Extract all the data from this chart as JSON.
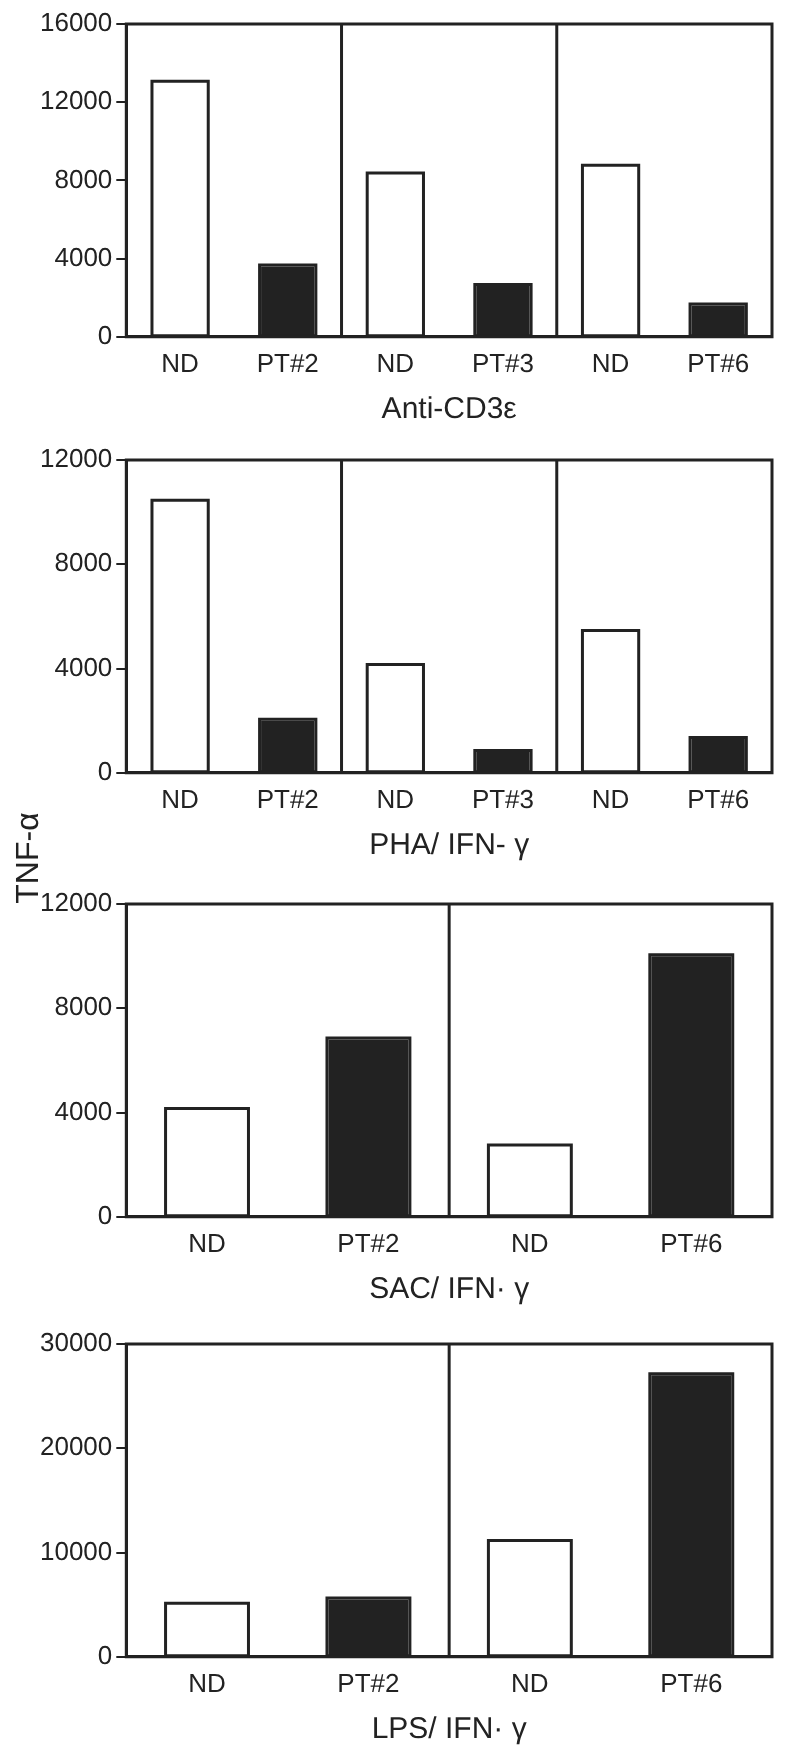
{
  "chart_data": [
    {
      "type": "bar",
      "xlabel": "Anti-CD3ε",
      "categories": [
        "ND",
        "PT#2",
        "ND",
        "PT#3",
        "ND",
        "PT#6"
      ],
      "values": [
        13000,
        3600,
        8300,
        2600,
        8700,
        1600
      ],
      "colors": [
        "#ffffff",
        "#222222",
        "#ffffff",
        "#222222",
        "#ffffff",
        "#222222"
      ],
      "ylim": [
        0,
        16000
      ],
      "yticks": [
        0,
        4000,
        8000,
        12000,
        16000
      ],
      "grid": false,
      "legend": false
    },
    {
      "type": "bar",
      "xlabel": "PHA/ IFN- γ",
      "ylabel": "TNF-α",
      "categories": [
        "ND",
        "PT#2",
        "ND",
        "PT#3",
        "ND",
        "PT#6"
      ],
      "values": [
        10400,
        2000,
        4100,
        800,
        5400,
        1300
      ],
      "colors": [
        "#ffffff",
        "#222222",
        "#ffffff",
        "#222222",
        "#ffffff",
        "#222222"
      ],
      "ylim": [
        0,
        12000
      ],
      "yticks": [
        0,
        4000,
        8000,
        12000
      ],
      "grid": false,
      "legend": false
    },
    {
      "type": "bar",
      "xlabel": "SAC/ IFN· γ",
      "categories": [
        "ND",
        "PT#2",
        "ND",
        "PT#6"
      ],
      "values": [
        4100,
        6800,
        2700,
        10000
      ],
      "colors": [
        "#ffffff",
        "#222222",
        "#ffffff",
        "#222222"
      ],
      "ylim": [
        0,
        12000
      ],
      "yticks": [
        0,
        4000,
        8000,
        12000
      ],
      "grid": false,
      "legend": false
    },
    {
      "type": "bar",
      "xlabel": "LPS/ IFN· γ",
      "categories": [
        "ND",
        "PT#2",
        "ND",
        "PT#6"
      ],
      "values": [
        5000,
        5500,
        11000,
        27000
      ],
      "colors": [
        "#ffffff",
        "#222222",
        "#ffffff",
        "#222222"
      ],
      "ylim": [
        0,
        30000
      ],
      "yticks": [
        0,
        10000,
        20000,
        30000
      ],
      "grid": false,
      "legend": false
    }
  ]
}
